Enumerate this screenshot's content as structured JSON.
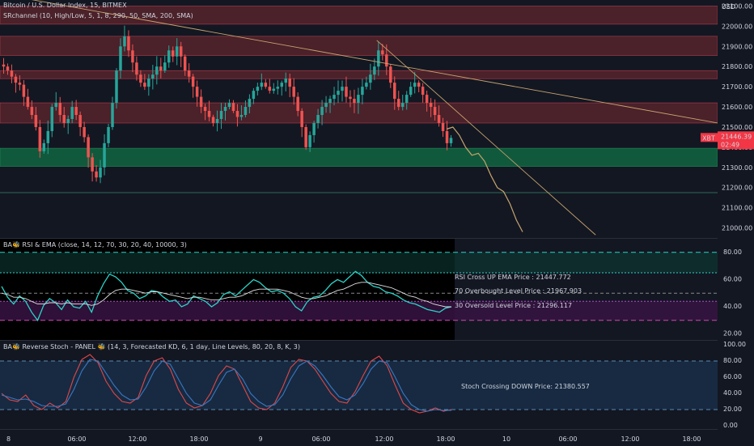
{
  "header": {
    "symbol_title": "Bitcoin / U.S. Dollar Index, 15, BITMEX",
    "sr_indicator": "SRchannel (10, High/Low, 5, 1, 8, 290, 50, SMA, 200, SMA)",
    "rsi_indicator": "BA🐝 RSI & EMA (close, 14, 12, 70, 30, 20, 40, 10000, 3)",
    "stoch_indicator": "BA🐝 Reverse Stoch - PANEL 🐝 (14, 3, Forecasted KD, 6, 1 day, Line Levels, 80, 20, 8, K, 3)",
    "currency": "USD"
  },
  "price_badge": {
    "symbol": "XBT",
    "price": "21446.39",
    "countdown": "02:49"
  },
  "colors": {
    "background": "#131722",
    "up": "#26a69a",
    "down": "#ef5350",
    "resistance_zone": "#7a2a32",
    "support_zone": "#12613f",
    "rsi_line": "#2bd3c8",
    "ema_line": "#e0e0e0",
    "trendline": "#c8a46e",
    "stoch_k": "#e04848",
    "stoch_d": "#3a78c2"
  },
  "chart_data": [
    {
      "type": "candlestick",
      "title": "Bitcoin / U.S. Dollar Index, 15, BITMEX",
      "ylabel": "USD",
      "ylim": [
        20950,
        22130
      ],
      "y_ticks": [
        22100,
        22000,
        21900,
        21800,
        21700,
        21600,
        21500,
        21400,
        21300,
        21200,
        21100,
        21000
      ],
      "y_tick_labels": [
        "22100.00",
        "22000.00",
        "21900.00",
        "21800.00",
        "21700.00",
        "21600.00",
        "21500.00",
        "21400.00",
        "21300.00",
        "21200.00",
        "21100.00",
        "21000.00"
      ],
      "x_tick_labels": [
        "8",
        "06:00",
        "12:00",
        "18:00",
        "9",
        "06:00",
        "12:00",
        "18:00",
        "10",
        "06:00",
        "12:00",
        "18:00"
      ],
      "close_path": [
        21800,
        21780,
        21750,
        21720,
        21710,
        21650,
        21600,
        21560,
        21500,
        21380,
        21420,
        21480,
        21600,
        21620,
        21560,
        21520,
        21540,
        21600,
        21560,
        21500,
        21450,
        21350,
        21280,
        21250,
        21300,
        21420,
        21500,
        21620,
        21780,
        21900,
        21950,
        21880,
        21820,
        21760,
        21720,
        21700,
        21740,
        21760,
        21800,
        21780,
        21820,
        21880,
        21850,
        21900,
        21850,
        21780,
        21750,
        21700,
        21650,
        21600,
        21580,
        21550,
        21520,
        21540,
        21580,
        21600,
        21620,
        21580,
        21550,
        21560,
        21600,
        21640,
        21680,
        21700,
        21720,
        21700,
        21680,
        21690,
        21700,
        21720,
        21740,
        21700,
        21650,
        21580,
        21500,
        21400,
        21460,
        21520,
        21560,
        21600,
        21620,
        21640,
        21660,
        21680,
        21700,
        21650,
        21640,
        21620,
        21660,
        21700,
        21720,
        21760,
        21800,
        21880,
        21860,
        21800,
        21720,
        21640,
        21600,
        21620,
        21660,
        21700,
        21720,
        21700,
        21660,
        21620,
        21600,
        21560,
        21520,
        21480,
        21420,
        21446
      ],
      "forecast_path": [
        21490,
        21500,
        21460,
        21400,
        21360,
        21370,
        21330,
        21260,
        21200,
        21180,
        21120,
        21040,
        20980
      ],
      "resistance_zones": [
        [
          22010,
          22100
        ],
        [
          21855,
          21950
        ],
        [
          21740,
          21780
        ],
        [
          21520,
          21620
        ]
      ],
      "support_zone": [
        21305,
        21395
      ],
      "support_line": 21175,
      "trendlines": [
        {
          "from": [
            0,
            22160
          ],
          "to": [
            1,
            21520
          ]
        },
        {
          "from": [
            0.525,
            21930
          ],
          "to": [
            0.83,
            20965
          ]
        }
      ]
    },
    {
      "type": "line",
      "title": "BA🐝 RSI & EMA (close, 14, 12, 70, 30, 20, 40, 10000, 3)",
      "ylim": [
        15,
        90
      ],
      "y_ticks": [
        80,
        60,
        40,
        20
      ],
      "y_tick_labels": [
        "80.00",
        "60.00",
        "40.00",
        "20.00"
      ],
      "levels": {
        "outer_top": 80,
        "upper": 65,
        "overbought": 50,
        "lower": 44,
        "oversold": 30
      },
      "series": [
        {
          "values": [
            55,
            47,
            42,
            48,
            44,
            36,
            30,
            41,
            46,
            43,
            38,
            45,
            40,
            39,
            44,
            36,
            48,
            57,
            64,
            62,
            58,
            52,
            50,
            46,
            48,
            52,
            51,
            47,
            44,
            45,
            40,
            42,
            48,
            46,
            44,
            40,
            43,
            49,
            51,
            48,
            52,
            56,
            60,
            58,
            54,
            51,
            52,
            50,
            46,
            40,
            37,
            44,
            47,
            48,
            52,
            57,
            60,
            58,
            62,
            66,
            63,
            58,
            55,
            54,
            51,
            50,
            48,
            45,
            43,
            42,
            40,
            38,
            37,
            36,
            39,
            40
          ]
        },
        {
          "values": [
            50,
            49,
            47,
            47,
            46,
            44,
            42,
            42,
            43,
            43,
            42,
            43,
            42,
            42,
            42,
            41,
            42,
            45,
            49,
            52,
            53,
            53,
            52,
            51,
            50,
            51,
            51,
            50,
            49,
            48,
            47,
            46,
            47,
            47,
            46,
            45,
            45,
            46,
            47,
            47,
            48,
            50,
            52,
            53,
            53,
            53,
            53,
            52,
            51,
            49,
            47,
            46,
            46,
            47,
            48,
            50,
            52,
            53,
            55,
            57,
            58,
            58,
            57,
            56,
            55,
            54,
            52,
            50,
            48,
            47,
            45,
            44,
            42,
            41,
            40,
            40
          ]
        }
      ],
      "annotations": [
        "RSI Cross UP EMA Price : 21447.772",
        "70 Overbought Level Price : 21967.903",
        "30 Oversold Level Price : 21296.117"
      ]
    },
    {
      "type": "line",
      "title": "BA🐝 Reverse Stoch - PANEL 🐝 (14, 3, Forecasted KD, 6, 1 day, Line Levels, 80, 20, 8, K, 3)",
      "ylim": [
        -5,
        105
      ],
      "y_ticks": [
        100,
        80,
        60,
        40,
        20,
        0
      ],
      "y_tick_labels": [
        "100.00",
        "80.00",
        "60.00",
        "40.00",
        "20.00",
        "0.00"
      ],
      "levels": [
        80,
        20
      ],
      "series": [
        {
          "values": [
            40,
            32,
            30,
            38,
            25,
            20,
            28,
            22,
            30,
            60,
            82,
            88,
            78,
            55,
            40,
            30,
            28,
            35,
            62,
            80,
            84,
            70,
            45,
            28,
            22,
            25,
            40,
            62,
            74,
            70,
            50,
            30,
            22,
            20,
            28,
            48,
            72,
            82,
            80,
            70,
            55,
            40,
            30,
            28,
            42,
            62,
            80,
            86,
            74,
            50,
            28,
            20,
            16,
            18,
            22,
            18,
            20
          ]
        },
        {
          "values": [
            38,
            35,
            32,
            33,
            30,
            25,
            24,
            24,
            27,
            45,
            68,
            82,
            80,
            65,
            50,
            38,
            32,
            33,
            48,
            68,
            80,
            76,
            58,
            40,
            28,
            25,
            32,
            50,
            66,
            70,
            58,
            40,
            30,
            24,
            26,
            38,
            58,
            74,
            80,
            74,
            62,
            48,
            36,
            32,
            38,
            52,
            70,
            80,
            78,
            60,
            40,
            26,
            20,
            18,
            20,
            19,
            19
          ]
        }
      ],
      "annotations": [
        "Stoch Crossing DOWN Price: 21380.557"
      ]
    }
  ]
}
